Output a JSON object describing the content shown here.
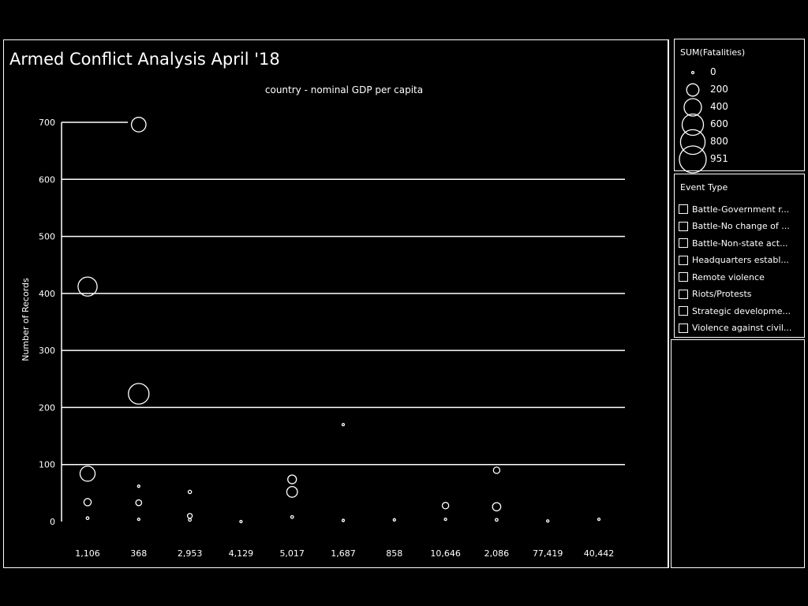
{
  "dashboard": {
    "title": "Armed Conflict Analysis April '18"
  },
  "size_legend": {
    "title": "SUM(Fatalities)",
    "entries": [
      "0",
      "200",
      "400",
      "600",
      "800",
      "951"
    ]
  },
  "event_type_legend": {
    "title": "Event Type",
    "items": [
      "Battle-Government r...",
      "Battle-No change of ...",
      "Battle-Non-state act...",
      "Headquarters establ...",
      "Remote violence",
      "Riots/Protests",
      "Strategic developme...",
      "Violence against civil..."
    ]
  },
  "chart_data": {
    "type": "scatter",
    "title": "country - nominal GDP per capita",
    "xlabel": "",
    "ylabel": "Number of Records",
    "ylim": [
      0,
      700
    ],
    "yticks": [
      0,
      100,
      200,
      300,
      400,
      500,
      600,
      700
    ],
    "grid": false,
    "categories": [
      "1,106",
      "368",
      "2,953",
      "4,129",
      "5,017",
      "1,687",
      "858",
      "10,646",
      "2,086",
      "77,419",
      "40,442"
    ],
    "points": [
      {
        "category": "1,106",
        "y": 412,
        "size": 480
      },
      {
        "category": "1,106",
        "y": 84,
        "size": 300
      },
      {
        "category": "1,106",
        "y": 34,
        "size": 70
      },
      {
        "category": "1,106",
        "y": 6,
        "size": 10
      },
      {
        "category": "368",
        "y": 696,
        "size": 280
      },
      {
        "category": "368",
        "y": 224,
        "size": 560
      },
      {
        "category": "368",
        "y": 62,
        "size": 5
      },
      {
        "category": "368",
        "y": 33,
        "size": 45
      },
      {
        "category": "368",
        "y": 4,
        "size": 5
      },
      {
        "category": "2,953",
        "y": 52,
        "size": 15
      },
      {
        "category": "2,953",
        "y": 10,
        "size": 30
      },
      {
        "category": "2,953",
        "y": 3,
        "size": 10
      },
      {
        "category": "4,129",
        "y": 0,
        "size": 5
      },
      {
        "category": "5,017",
        "y": 74,
        "size": 100
      },
      {
        "category": "5,017",
        "y": 52,
        "size": 150
      },
      {
        "category": "5,017",
        "y": 8,
        "size": 10
      },
      {
        "category": "1,687",
        "y": 170,
        "size": 5
      },
      {
        "category": "1,687",
        "y": 2,
        "size": 5
      },
      {
        "category": "858",
        "y": 3,
        "size": 5
      },
      {
        "category": "10,646",
        "y": 28,
        "size": 55
      },
      {
        "category": "10,646",
        "y": 4,
        "size": 5
      },
      {
        "category": "2,086",
        "y": 90,
        "size": 55
      },
      {
        "category": "2,086",
        "y": 26,
        "size": 90
      },
      {
        "category": "2,086",
        "y": 3,
        "size": 10
      },
      {
        "category": "77,419",
        "y": 1,
        "size": 5
      },
      {
        "category": "40,442",
        "y": 4,
        "size": 5
      }
    ],
    "size_field": "SUM(Fatalities)",
    "size_max": 951
  }
}
